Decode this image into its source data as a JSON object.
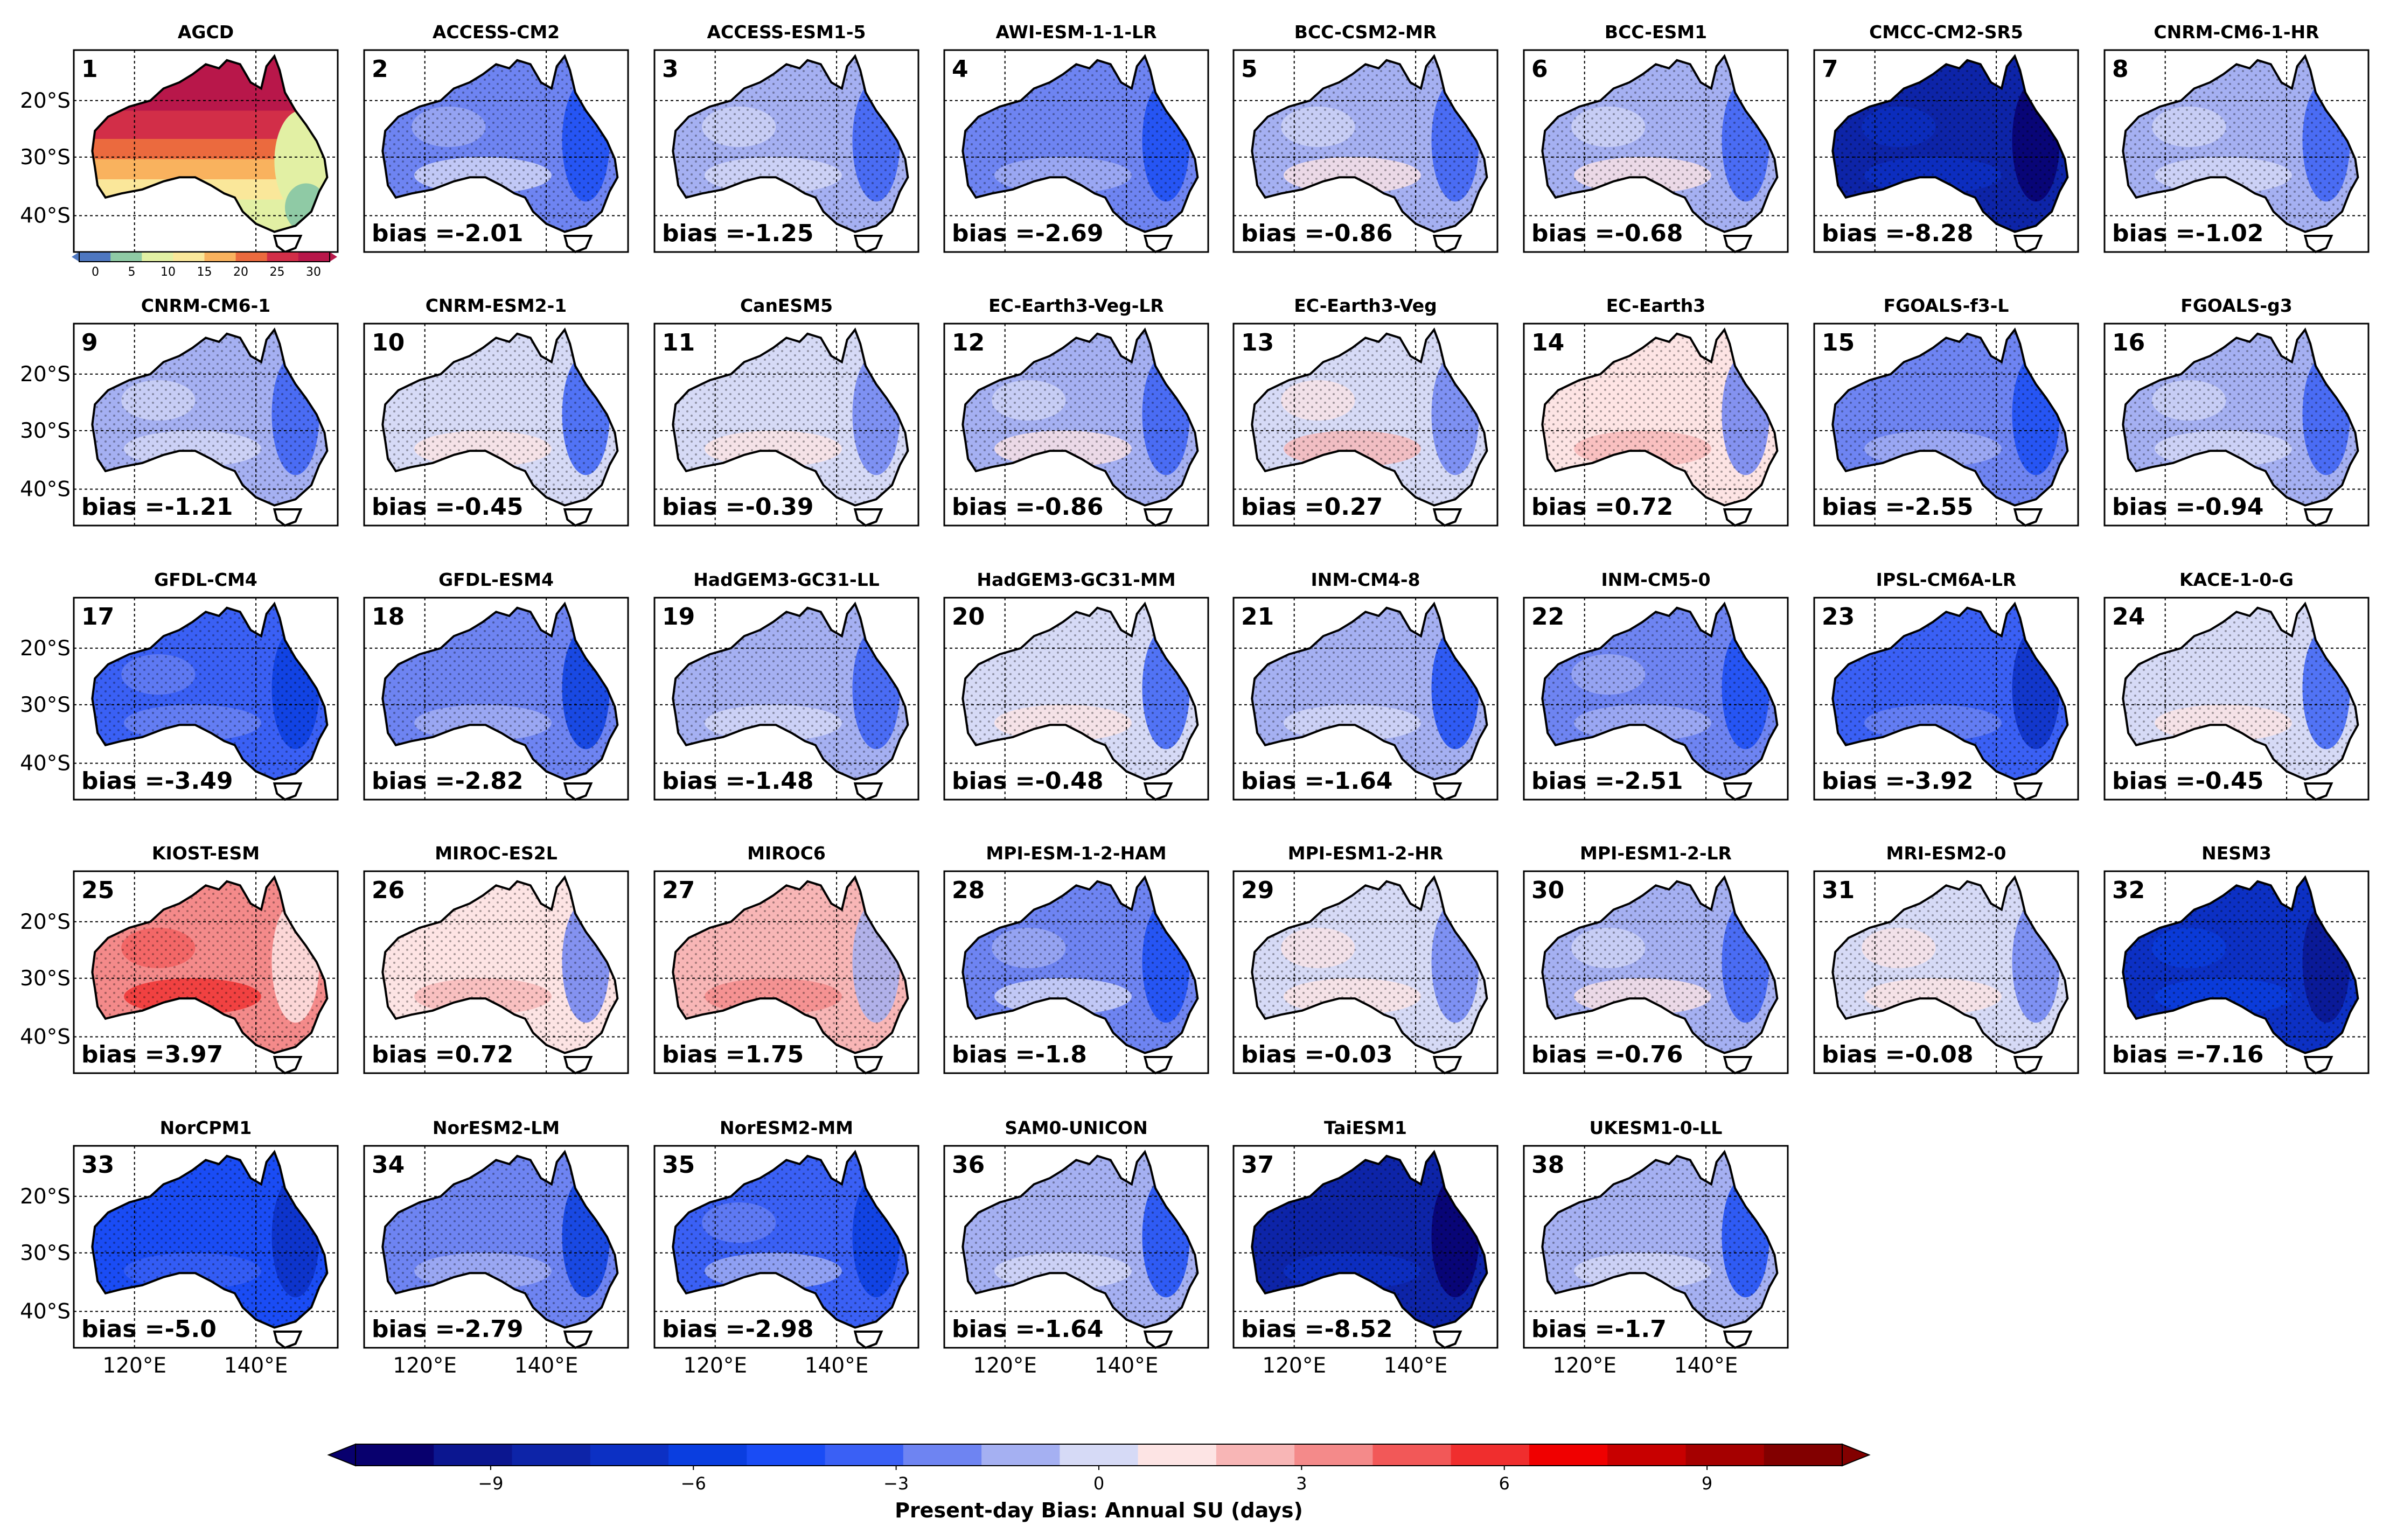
{
  "chart_data": {
    "type": "heatmap",
    "title": "Present-day Bias: Annual SU (days)",
    "colorbar_label": "Present-day Bias: Annual SU (days)",
    "colorbar_ticks": [
      "−9",
      "−6",
      "−3",
      "0",
      "3",
      "6",
      "9"
    ],
    "colorbar_range": [
      -11,
      11
    ],
    "colorbar_colors": [
      "#08006e",
      "#0b1690",
      "#0d24a8",
      "#0c30c4",
      "#0a3ee0",
      "#1a4cf5",
      "#3a60f5",
      "#6e84f2",
      "#a5b0f2",
      "#d6daf6",
      "#fde4e4",
      "#f8b6b6",
      "#f48a8a",
      "#f25858",
      "#f02e2e",
      "#f00000",
      "#c80000",
      "#a50000",
      "#820000"
    ],
    "agcd_colorbar_ticks": [
      "0",
      "5",
      "10",
      "15",
      "20",
      "25",
      "30"
    ],
    "agcd_colors": [
      "#4e77c0",
      "#8fcaa5",
      "#e2f0a4",
      "#fae79a",
      "#f9b25e",
      "#eb6a3e",
      "#d22e48",
      "#b8174a"
    ],
    "lat_labels": [
      "20°S",
      "30°S",
      "40°S"
    ],
    "lon_labels": [
      "120°E",
      "140°E"
    ],
    "panels": [
      {
        "num": "1",
        "name": "AGCD",
        "bias_text": "",
        "bias": null
      },
      {
        "num": "2",
        "name": "ACCESS-CM2",
        "bias_text": "bias =-2.01",
        "bias": -2.01
      },
      {
        "num": "3",
        "name": "ACCESS-ESM1-5",
        "bias_text": "bias =-1.25",
        "bias": -1.25
      },
      {
        "num": "4",
        "name": "AWI-ESM-1-1-LR",
        "bias_text": "bias =-2.69",
        "bias": -2.69
      },
      {
        "num": "5",
        "name": "BCC-CSM2-MR",
        "bias_text": "bias =-0.86",
        "bias": -0.86
      },
      {
        "num": "6",
        "name": "BCC-ESM1",
        "bias_text": "bias =-0.68",
        "bias": -0.68
      },
      {
        "num": "7",
        "name": "CMCC-CM2-SR5",
        "bias_text": "bias =-8.28",
        "bias": -8.28
      },
      {
        "num": "8",
        "name": "CNRM-CM6-1-HR",
        "bias_text": "bias =-1.02",
        "bias": -1.02
      },
      {
        "num": "9",
        "name": "CNRM-CM6-1",
        "bias_text": "bias =-1.21",
        "bias": -1.21
      },
      {
        "num": "10",
        "name": "CNRM-ESM2-1",
        "bias_text": "bias =-0.45",
        "bias": -0.45
      },
      {
        "num": "11",
        "name": "CanESM5",
        "bias_text": "bias =-0.39",
        "bias": -0.39
      },
      {
        "num": "12",
        "name": "EC-Earth3-Veg-LR",
        "bias_text": "bias =-0.86",
        "bias": -0.86
      },
      {
        "num": "13",
        "name": "EC-Earth3-Veg",
        "bias_text": "bias =0.27",
        "bias": 0.27
      },
      {
        "num": "14",
        "name": "EC-Earth3",
        "bias_text": "bias =0.72",
        "bias": 0.72
      },
      {
        "num": "15",
        "name": "FGOALS-f3-L",
        "bias_text": "bias =-2.55",
        "bias": -2.55
      },
      {
        "num": "16",
        "name": "FGOALS-g3",
        "bias_text": "bias =-0.94",
        "bias": -0.94
      },
      {
        "num": "17",
        "name": "GFDL-CM4",
        "bias_text": "bias =-3.49",
        "bias": -3.49
      },
      {
        "num": "18",
        "name": "GFDL-ESM4",
        "bias_text": "bias =-2.82",
        "bias": -2.82
      },
      {
        "num": "19",
        "name": "HadGEM3-GC31-LL",
        "bias_text": "bias =-1.48",
        "bias": -1.48
      },
      {
        "num": "20",
        "name": "HadGEM3-GC31-MM",
        "bias_text": "bias =-0.48",
        "bias": -0.48
      },
      {
        "num": "21",
        "name": "INM-CM4-8",
        "bias_text": "bias =-1.64",
        "bias": -1.64
      },
      {
        "num": "22",
        "name": "INM-CM5-0",
        "bias_text": "bias =-2.51",
        "bias": -2.51
      },
      {
        "num": "23",
        "name": "IPSL-CM6A-LR",
        "bias_text": "bias =-3.92",
        "bias": -3.92
      },
      {
        "num": "24",
        "name": "KACE-1-0-G",
        "bias_text": "bias =-0.45",
        "bias": -0.45
      },
      {
        "num": "25",
        "name": "KIOST-ESM",
        "bias_text": "bias =3.97",
        "bias": 3.97
      },
      {
        "num": "26",
        "name": "MIROC-ES2L",
        "bias_text": "bias =0.72",
        "bias": 0.72
      },
      {
        "num": "27",
        "name": "MIROC6",
        "bias_text": "bias =1.75",
        "bias": 1.75
      },
      {
        "num": "28",
        "name": "MPI-ESM-1-2-HAM",
        "bias_text": "bias =-1.8",
        "bias": -1.8
      },
      {
        "num": "29",
        "name": "MPI-ESM1-2-HR",
        "bias_text": "bias =-0.03",
        "bias": -0.03
      },
      {
        "num": "30",
        "name": "MPI-ESM1-2-LR",
        "bias_text": "bias =-0.76",
        "bias": -0.76
      },
      {
        "num": "31",
        "name": "MRI-ESM2-0",
        "bias_text": "bias =-0.08",
        "bias": -0.08
      },
      {
        "num": "32",
        "name": "NESM3",
        "bias_text": "bias =-7.16",
        "bias": -7.16
      },
      {
        "num": "33",
        "name": "NorCPM1",
        "bias_text": "bias =-5.0",
        "bias": -5.0
      },
      {
        "num": "34",
        "name": "NorESM2-LM",
        "bias_text": "bias =-2.79",
        "bias": -2.79
      },
      {
        "num": "35",
        "name": "NorESM2-MM",
        "bias_text": "bias =-2.98",
        "bias": -2.98
      },
      {
        "num": "36",
        "name": "SAM0-UNICON",
        "bias_text": "bias =-1.64",
        "bias": -1.64
      },
      {
        "num": "37",
        "name": "TaiESM1",
        "bias_text": "bias =-8.52",
        "bias": -8.52
      },
      {
        "num": "38",
        "name": "UKESM1-0-LL",
        "bias_text": "bias =-1.7",
        "bias": -1.7
      }
    ]
  }
}
